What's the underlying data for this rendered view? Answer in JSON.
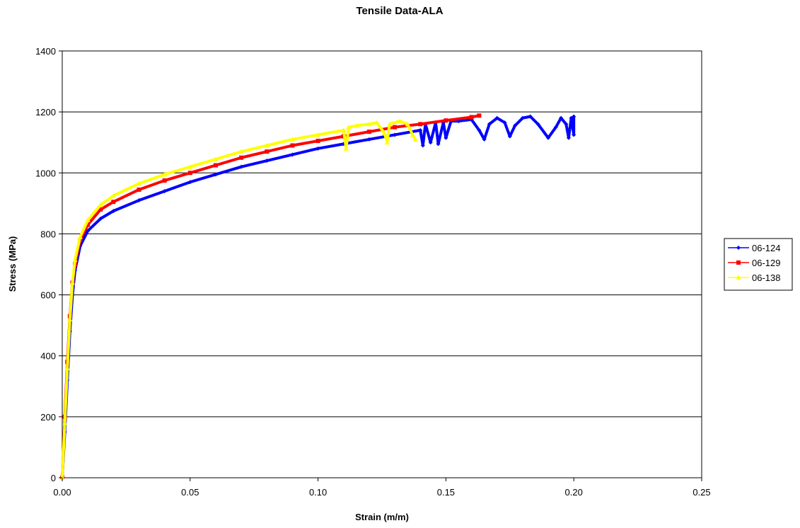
{
  "chart_data": {
    "type": "line",
    "title": "Tensile Data-ALA",
    "xlabel": "Strain (m/m)",
    "ylabel": "Stress (MPa)",
    "xlim": [
      0,
      0.25
    ],
    "ylim": [
      0,
      1400
    ],
    "x_ticks": [
      "0.00",
      "0.05",
      "0.10",
      "0.15",
      "0.20",
      "0.25"
    ],
    "y_ticks": [
      "0",
      "200",
      "400",
      "600",
      "800",
      "1000",
      "1200",
      "1400"
    ],
    "grid": "horizontal major gridlines",
    "legend_position": "right",
    "series": [
      {
        "name": "06-124",
        "color": "#0000ff",
        "marker": "diamond",
        "points": [
          [
            0,
            0
          ],
          [
            0.001,
            150
          ],
          [
            0.002,
            320
          ],
          [
            0.003,
            480
          ],
          [
            0.004,
            600
          ],
          [
            0.005,
            680
          ],
          [
            0.007,
            760
          ],
          [
            0.01,
            810
          ],
          [
            0.015,
            850
          ],
          [
            0.02,
            875
          ],
          [
            0.03,
            910
          ],
          [
            0.04,
            940
          ],
          [
            0.05,
            970
          ],
          [
            0.06,
            995
          ],
          [
            0.07,
            1020
          ],
          [
            0.08,
            1040
          ],
          [
            0.09,
            1060
          ],
          [
            0.1,
            1080
          ],
          [
            0.11,
            1095
          ],
          [
            0.12,
            1110
          ],
          [
            0.13,
            1125
          ],
          [
            0.14,
            1140
          ],
          [
            0.141,
            1090
          ],
          [
            0.142,
            1160
          ],
          [
            0.144,
            1100
          ],
          [
            0.146,
            1165
          ],
          [
            0.147,
            1095
          ],
          [
            0.149,
            1165
          ],
          [
            0.15,
            1115
          ],
          [
            0.152,
            1170
          ],
          [
            0.155,
            1170
          ],
          [
            0.16,
            1175
          ],
          [
            0.163,
            1140
          ],
          [
            0.165,
            1110
          ],
          [
            0.167,
            1160
          ],
          [
            0.17,
            1180
          ],
          [
            0.173,
            1165
          ],
          [
            0.175,
            1120
          ],
          [
            0.177,
            1155
          ],
          [
            0.18,
            1180
          ],
          [
            0.183,
            1185
          ],
          [
            0.186,
            1160
          ],
          [
            0.19,
            1115
          ],
          [
            0.193,
            1150
          ],
          [
            0.195,
            1180
          ],
          [
            0.197,
            1160
          ],
          [
            0.198,
            1115
          ],
          [
            0.199,
            1180
          ],
          [
            0.2,
            1125
          ],
          [
            0.2,
            1185
          ]
        ]
      },
      {
        "name": "06-129",
        "color": "#ff0000",
        "marker": "square",
        "points": [
          [
            0,
            0
          ],
          [
            0.001,
            200
          ],
          [
            0.002,
            380
          ],
          [
            0.003,
            530
          ],
          [
            0.004,
            640
          ],
          [
            0.005,
            700
          ],
          [
            0.007,
            780
          ],
          [
            0.01,
            830
          ],
          [
            0.015,
            880
          ],
          [
            0.02,
            905
          ],
          [
            0.03,
            945
          ],
          [
            0.04,
            975
          ],
          [
            0.05,
            1000
          ],
          [
            0.06,
            1025
          ],
          [
            0.07,
            1050
          ],
          [
            0.08,
            1070
          ],
          [
            0.09,
            1090
          ],
          [
            0.1,
            1105
          ],
          [
            0.11,
            1120
          ],
          [
            0.12,
            1135
          ],
          [
            0.13,
            1150
          ],
          [
            0.14,
            1160
          ],
          [
            0.15,
            1172
          ],
          [
            0.16,
            1183
          ],
          [
            0.163,
            1188
          ]
        ]
      },
      {
        "name": "06-138",
        "color": "#ffff00",
        "marker": "triangle",
        "points": [
          [
            0,
            0
          ],
          [
            0.001,
            180
          ],
          [
            0.002,
            360
          ],
          [
            0.003,
            520
          ],
          [
            0.004,
            640
          ],
          [
            0.005,
            715
          ],
          [
            0.007,
            790
          ],
          [
            0.01,
            845
          ],
          [
            0.015,
            895
          ],
          [
            0.02,
            925
          ],
          [
            0.03,
            965
          ],
          [
            0.04,
            995
          ],
          [
            0.05,
            1020
          ],
          [
            0.06,
            1045
          ],
          [
            0.07,
            1070
          ],
          [
            0.08,
            1090
          ],
          [
            0.09,
            1110
          ],
          [
            0.1,
            1125
          ],
          [
            0.11,
            1140
          ],
          [
            0.111,
            1080
          ],
          [
            0.112,
            1150
          ],
          [
            0.115,
            1155
          ],
          [
            0.12,
            1160
          ],
          [
            0.123,
            1165
          ],
          [
            0.126,
            1130
          ],
          [
            0.127,
            1100
          ],
          [
            0.128,
            1160
          ],
          [
            0.132,
            1170
          ],
          [
            0.135,
            1160
          ],
          [
            0.137,
            1125
          ],
          [
            0.138,
            1110
          ]
        ]
      }
    ]
  }
}
